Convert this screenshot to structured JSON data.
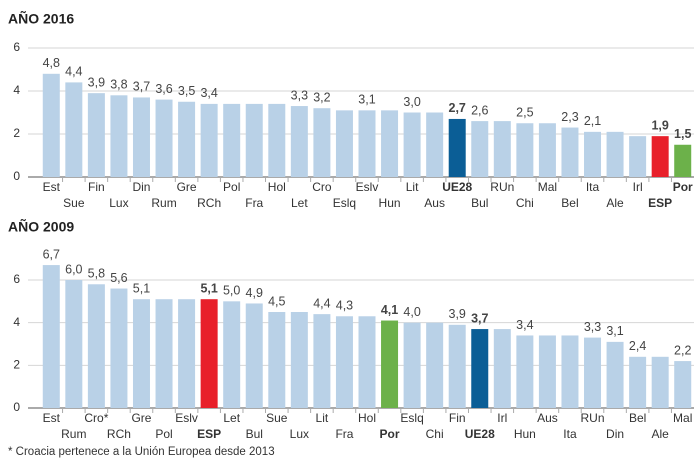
{
  "chart_data": [
    {
      "type": "bar",
      "title": "AÑO 2016",
      "categories": [
        "Est",
        "Sue",
        "Fin",
        "Lux",
        "Din",
        "Rum",
        "Gre",
        "RCh",
        "Pol",
        "Fra",
        "Hol",
        "Let",
        "Cro",
        "Eslq",
        "Eslv",
        "Hun",
        "Lit",
        "Aus",
        "UE28",
        "Bul",
        "RUn",
        "Chi",
        "Mal",
        "Bel",
        "Ita",
        "Ale",
        "Irl",
        "ESP",
        "Por"
      ],
      "values": [
        4.8,
        4.4,
        3.9,
        3.8,
        3.7,
        3.6,
        3.5,
        3.4,
        3.4,
        3.4,
        3.4,
        3.3,
        3.2,
        3.1,
        3.1,
        3.1,
        3.0,
        3.0,
        2.7,
        2.6,
        2.6,
        2.5,
        2.5,
        2.3,
        2.1,
        2.1,
        1.9,
        1.9,
        1.5
      ],
      "value_labels": [
        "4,8",
        "4,4",
        "3,9",
        "3,8",
        "3,7",
        "3,6",
        "3,5",
        "3,4",
        null,
        null,
        null,
        "3,3",
        "3,2",
        null,
        "3,1",
        null,
        "3,0",
        null,
        "2,7",
        "2,6",
        null,
        "2,5",
        null,
        "2,3",
        "2,1",
        null,
        null,
        "1,9",
        "1,5"
      ],
      "color": "#b9d1e7",
      "highlights": [
        {
          "category": "UE28",
          "color": "#0b5e96"
        },
        {
          "category": "ESP",
          "color": "#e8202a"
        },
        {
          "category": "Por",
          "color": "#6cb14a"
        }
      ],
      "ylim": [
        0,
        6
      ],
      "yticks": [
        0,
        2,
        4,
        6
      ],
      "grid": true
    },
    {
      "type": "bar",
      "title": "AÑO 2009",
      "categories": [
        "Est",
        "Rum",
        "Cro*",
        "RCh",
        "Gre",
        "Pol",
        "Eslv",
        "ESP",
        "Let",
        "Bul",
        "Sue",
        "Lux",
        "Lit",
        "Fra",
        "Hol",
        "Por",
        "Eslq",
        "Chi",
        "Fin",
        "UE28",
        "Irl",
        "Hun",
        "Aus",
        "Ita",
        "RUn",
        "Din",
        "Bel",
        "Ale",
        "Mal"
      ],
      "values": [
        6.7,
        6.0,
        5.8,
        5.6,
        5.1,
        5.1,
        5.1,
        5.1,
        5.0,
        4.9,
        4.5,
        4.5,
        4.4,
        4.3,
        4.3,
        4.1,
        4.0,
        4.0,
        3.9,
        3.7,
        3.7,
        3.4,
        3.4,
        3.4,
        3.3,
        3.1,
        2.4,
        2.4,
        2.2
      ],
      "value_labels": [
        "6,7",
        "6,0",
        "5,8",
        "5,6",
        "5,1",
        null,
        null,
        "5,1",
        "5,0",
        "4,9",
        "4,5",
        null,
        "4,4",
        "4,3",
        null,
        "4,1",
        "4,0",
        null,
        "3,9",
        "3,7",
        null,
        "3,4",
        null,
        null,
        "3,3",
        "3,1",
        "2,4",
        null,
        "2,2"
      ],
      "color": "#b9d1e7",
      "highlights": [
        {
          "category": "UE28",
          "color": "#0b5e96"
        },
        {
          "category": "ESP",
          "color": "#e8202a"
        },
        {
          "category": "Por",
          "color": "#6cb14a"
        }
      ],
      "ylim": [
        0,
        6
      ],
      "yticks": [
        0,
        2,
        4,
        6
      ],
      "grid": true
    }
  ],
  "footnote": "* Croacia pertenece a la Unión Europea desde 2013"
}
